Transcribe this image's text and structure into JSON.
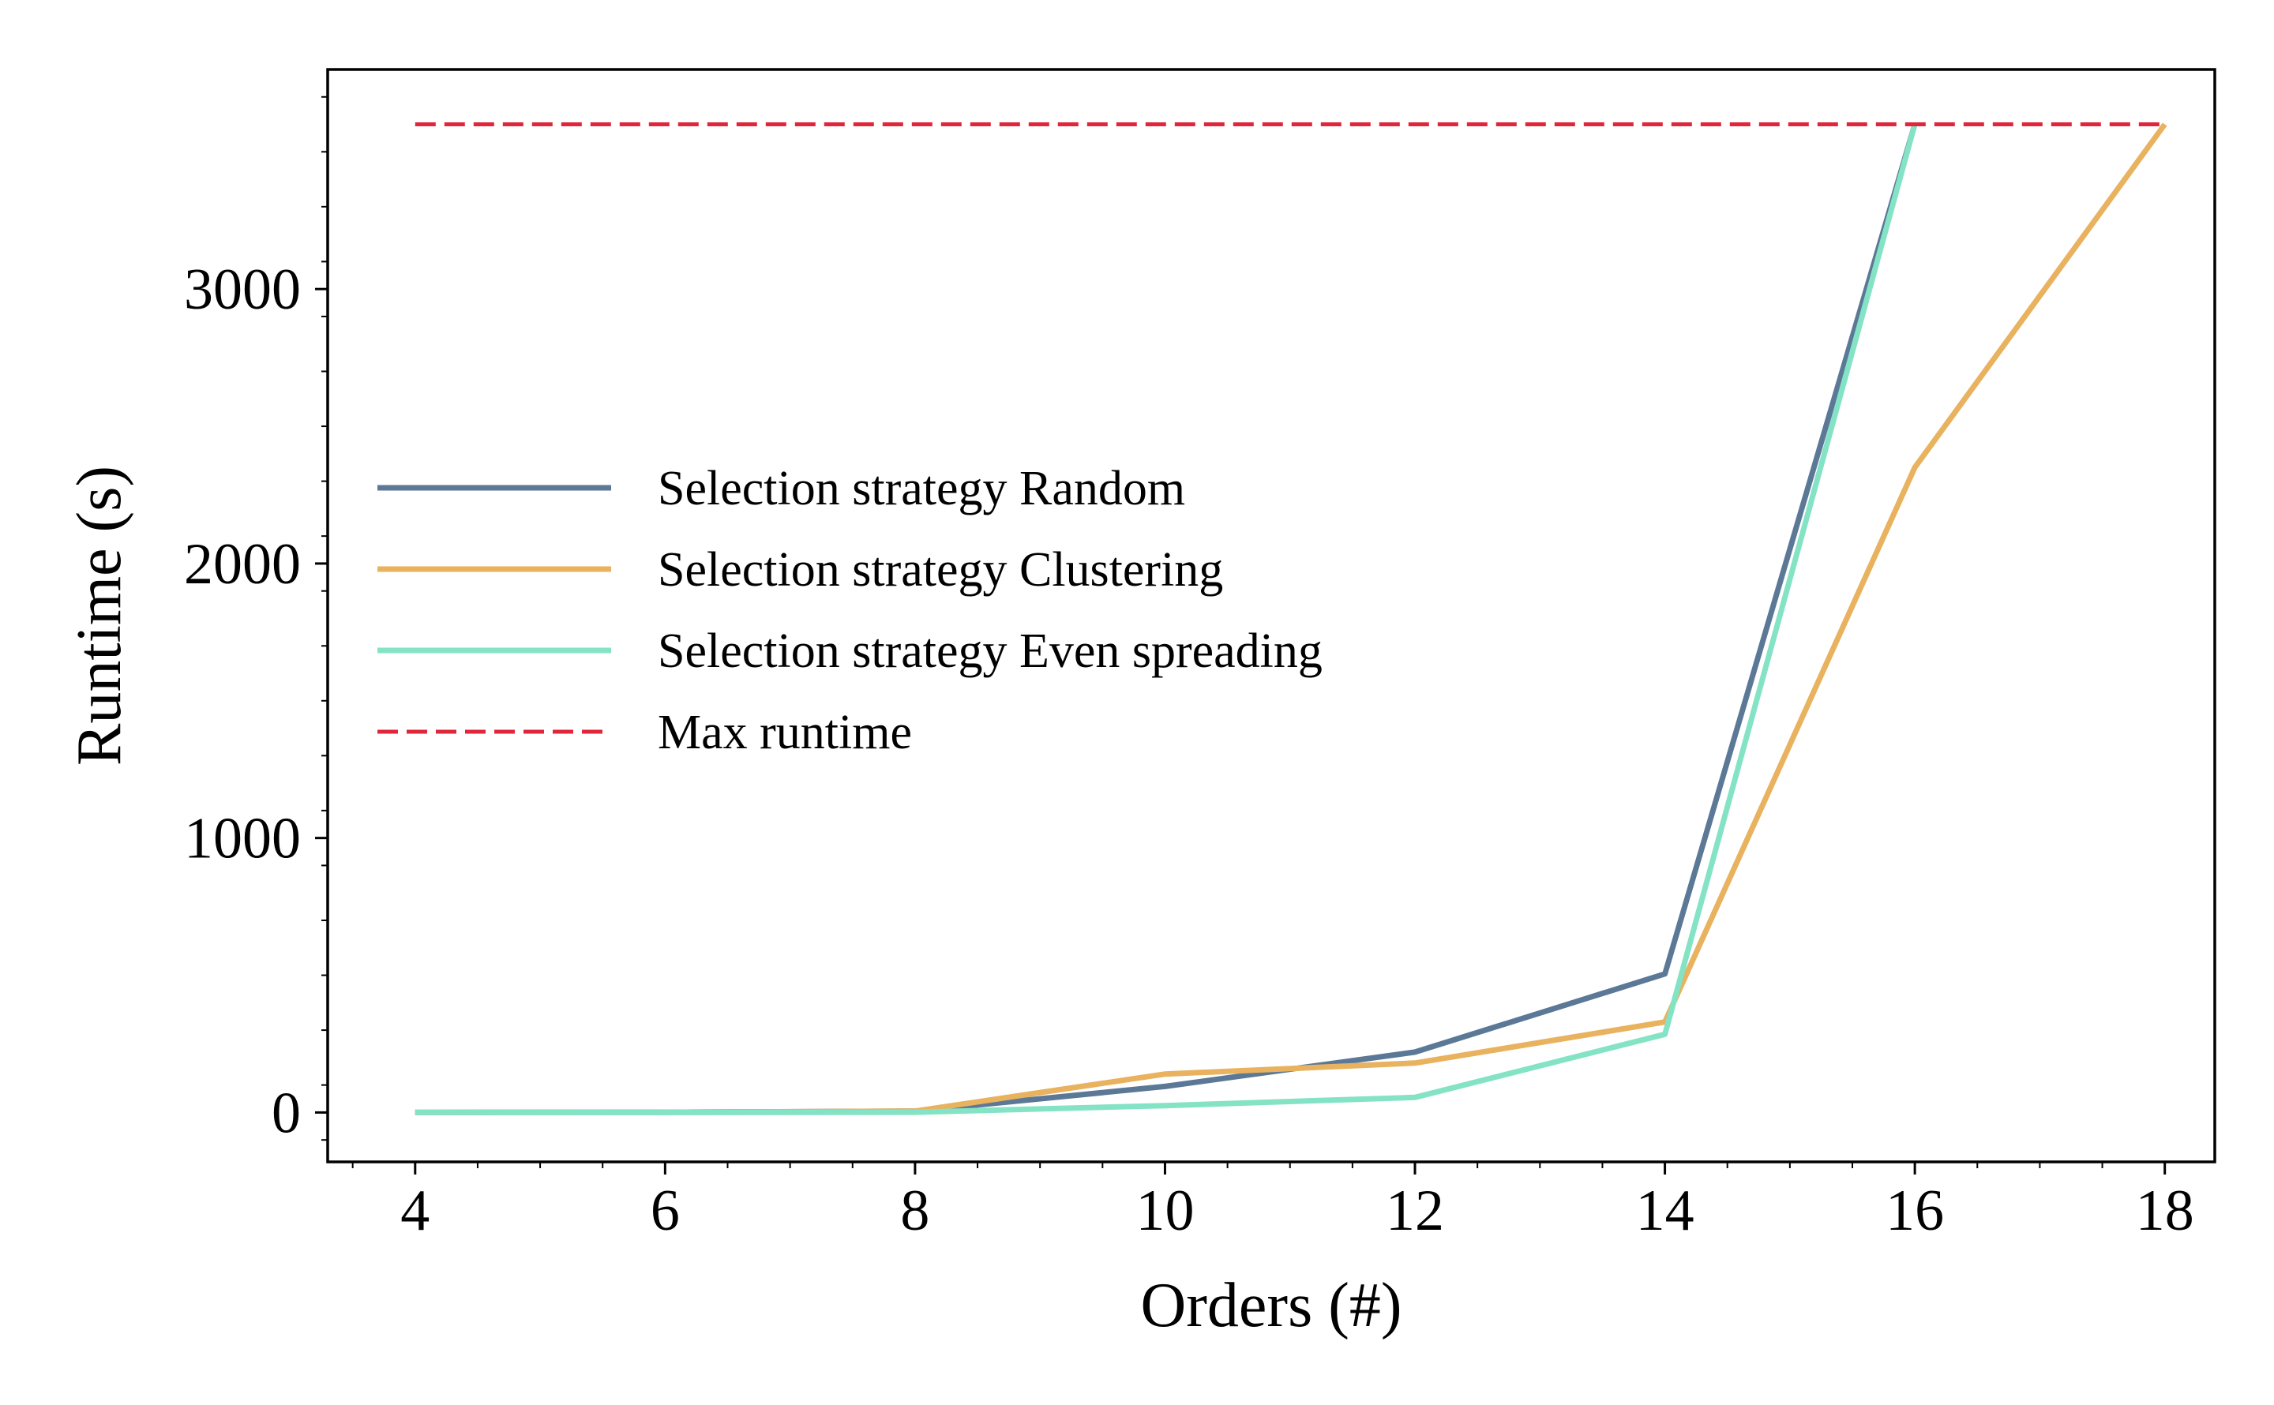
{
  "chart_data": {
    "type": "line",
    "xlabel": "Orders (#)",
    "ylabel": "Runtime (s)",
    "xlim": [
      3.3,
      18.4
    ],
    "ylim": [
      -180,
      3800
    ],
    "xticks": [
      4,
      6,
      8,
      10,
      12,
      14,
      16,
      18
    ],
    "yticks": [
      0,
      1000,
      2000,
      3000
    ],
    "x": [
      4,
      6,
      8,
      10,
      12,
      14,
      16,
      18
    ],
    "grid": false,
    "legend_position": "center-left",
    "series": [
      {
        "name": "Selection strategy Random",
        "color": "#5b7896",
        "style": "solid",
        "x": [
          4,
          6,
          8,
          10,
          12,
          14,
          16
        ],
        "values": [
          0,
          1,
          5,
          95,
          220,
          505,
          3600
        ]
      },
      {
        "name": "Selection strategy Clustering",
        "color": "#e8b25e",
        "style": "solid",
        "x": [
          4,
          6,
          8,
          10,
          12,
          14,
          16,
          18
        ],
        "values": [
          0,
          1,
          5,
          140,
          180,
          330,
          2350,
          3600
        ]
      },
      {
        "name": "Selection strategy Even spreading",
        "color": "#84e3c5",
        "style": "solid",
        "x": [
          4,
          6,
          8,
          10,
          12,
          14,
          16
        ],
        "values": [
          0,
          0,
          1,
          25,
          55,
          285,
          3600
        ]
      },
      {
        "name": "Max runtime",
        "color": "#e0263a",
        "style": "dashed",
        "x": [
          4,
          18
        ],
        "values": [
          3600,
          3600
        ]
      }
    ]
  }
}
